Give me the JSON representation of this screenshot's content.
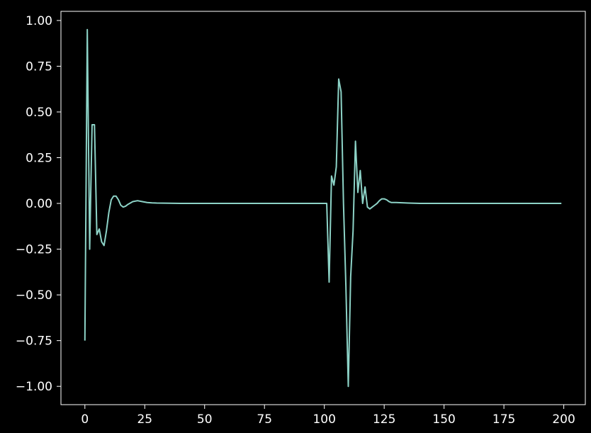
{
  "chart_data": {
    "type": "line",
    "background_color": "#000000",
    "axes_color": "#ffffff",
    "series_color": "#8dd3c7",
    "grid": false,
    "legend": "none",
    "title": "",
    "xlabel": "",
    "ylabel": "",
    "xlim": [
      -10,
      209
    ],
    "ylim": [
      -1.1,
      1.05
    ],
    "x_ticks": [
      0,
      25,
      50,
      75,
      100,
      125,
      150,
      175,
      200
    ],
    "x_tick_labels": [
      "0",
      "25",
      "50",
      "75",
      "100",
      "125",
      "150",
      "175",
      "200"
    ],
    "y_ticks": [
      1.0,
      0.75,
      0.5,
      0.25,
      0.0,
      -0.25,
      -0.5,
      -0.75,
      -1.0
    ],
    "y_tick_labels": [
      "1.00",
      "0.75",
      "0.50",
      "0.25",
      "0.00",
      "−0.25",
      "−0.50",
      "−0.75",
      "−1.00"
    ],
    "series": [
      {
        "x": [
          0,
          1,
          2,
          3,
          4,
          5,
          6,
          7,
          8,
          9,
          10,
          11,
          12,
          13,
          14,
          15,
          16,
          17,
          18,
          20,
          22,
          24,
          26,
          28,
          30,
          35,
          40,
          50,
          60,
          70,
          80,
          90,
          99,
          100,
          101,
          102,
          103,
          104,
          105,
          106,
          107,
          108,
          109,
          110,
          111,
          112,
          113,
          114,
          115,
          116,
          117,
          118,
          119,
          120,
          121,
          122,
          123,
          124,
          125,
          126,
          127,
          128,
          130,
          135,
          140,
          150,
          160,
          170,
          180,
          190,
          199
        ],
        "y": [
          -0.75,
          0.95,
          -0.25,
          0.43,
          0.43,
          -0.17,
          -0.14,
          -0.21,
          -0.23,
          -0.15,
          -0.05,
          0.02,
          0.04,
          0.04,
          0.02,
          -0.01,
          -0.02,
          -0.015,
          -0.005,
          0.01,
          0.015,
          0.01,
          0.005,
          0.003,
          0.002,
          0.001,
          0.0,
          0.0,
          0.0,
          0.0,
          0.0,
          0.0,
          0.0,
          0.0,
          0.0,
          -0.43,
          0.15,
          0.1,
          0.2,
          0.68,
          0.61,
          0.0,
          -0.45,
          -1.0,
          -0.4,
          -0.15,
          0.34,
          0.06,
          0.18,
          0.0,
          0.09,
          -0.02,
          -0.03,
          -0.02,
          -0.01,
          0.0,
          0.015,
          0.025,
          0.025,
          0.02,
          0.01,
          0.005,
          0.005,
          0.002,
          0.0,
          0.0,
          0.0,
          0.0,
          0.0,
          0.0,
          0.0
        ]
      }
    ]
  }
}
